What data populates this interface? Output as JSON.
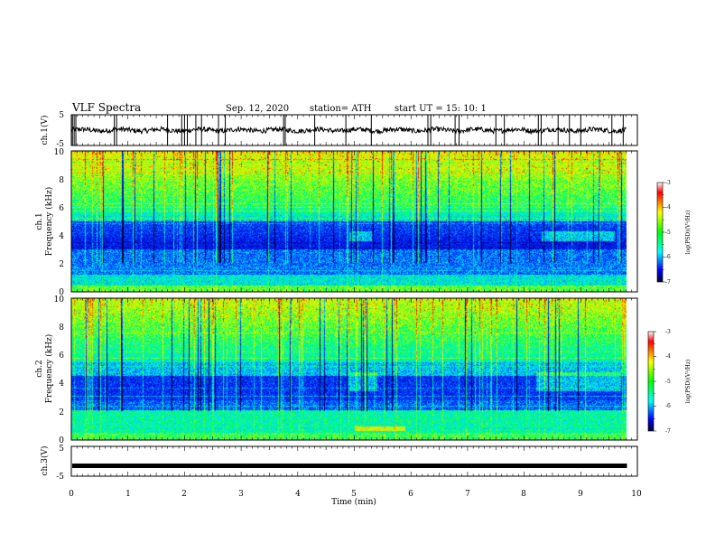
{
  "header": {
    "title": "VLF Spectra",
    "date": "Sep. 12, 2020",
    "station": "station= ATH",
    "start": "start  UT =   15: 10: 1"
  },
  "chart_data": [
    {
      "type": "line",
      "panel": "ch1-voltage",
      "ylabel": "ch.1(V)",
      "ylim": [
        -5,
        5
      ],
      "yticks": [
        "5",
        "-5"
      ],
      "xlim": [
        0,
        10
      ],
      "baseline_level": 0,
      "spike_times": [
        0.02,
        0.05,
        0.08,
        0.76,
        0.8,
        1.7,
        1.95,
        2.0,
        2.05,
        2.2,
        2.3,
        2.6,
        2.72,
        3.75,
        3.78,
        4.3,
        4.85,
        5.3,
        6.3,
        6.35,
        6.78,
        6.85,
        7.5,
        7.65,
        8.25,
        8.3,
        8.6,
        8.8,
        9.0,
        9.55,
        9.75
      ]
    },
    {
      "type": "heatmap",
      "panel": "ch1-spectrogram",
      "ylabel_top": "ch.1",
      "ylabel": "Frequency  (kHz)",
      "ylim": [
        0,
        10
      ],
      "yticks": [
        "0",
        "2",
        "4",
        "6",
        "8",
        "10"
      ],
      "xlim": [
        0,
        10
      ],
      "colorbar": {
        "label": "log(PSD)(V²/Hz)",
        "range": [
          -7,
          -3
        ],
        "ticks": [
          "-3",
          "-4",
          "-5",
          "-6",
          "-7"
        ]
      }
    },
    {
      "type": "heatmap",
      "panel": "ch2-spectrogram",
      "ylabel_top": "ch.2",
      "ylabel": "Frequency  (kHz)",
      "ylim": [
        0,
        10
      ],
      "yticks": [
        "0",
        "2",
        "4",
        "6",
        "8",
        "10"
      ],
      "xlim": [
        0,
        10
      ],
      "colorbar": {
        "label": "log(PSD)(V²/Hz)",
        "range": [
          -7,
          -3
        ],
        "ticks": [
          "-3",
          "-4",
          "-5",
          "-6",
          "-7"
        ]
      }
    },
    {
      "type": "line",
      "panel": "ch3-voltage",
      "ylabel": "ch.3(V)",
      "ylim": [
        -5,
        5
      ],
      "yticks": [
        "5",
        "-5"
      ],
      "xlim": [
        0,
        10
      ],
      "baseline_level": -1.5,
      "xlabel": "Time  (min)",
      "xticks": [
        "0",
        "1",
        "2",
        "3",
        "4",
        "5",
        "6",
        "7",
        "8",
        "9",
        "10"
      ]
    }
  ]
}
